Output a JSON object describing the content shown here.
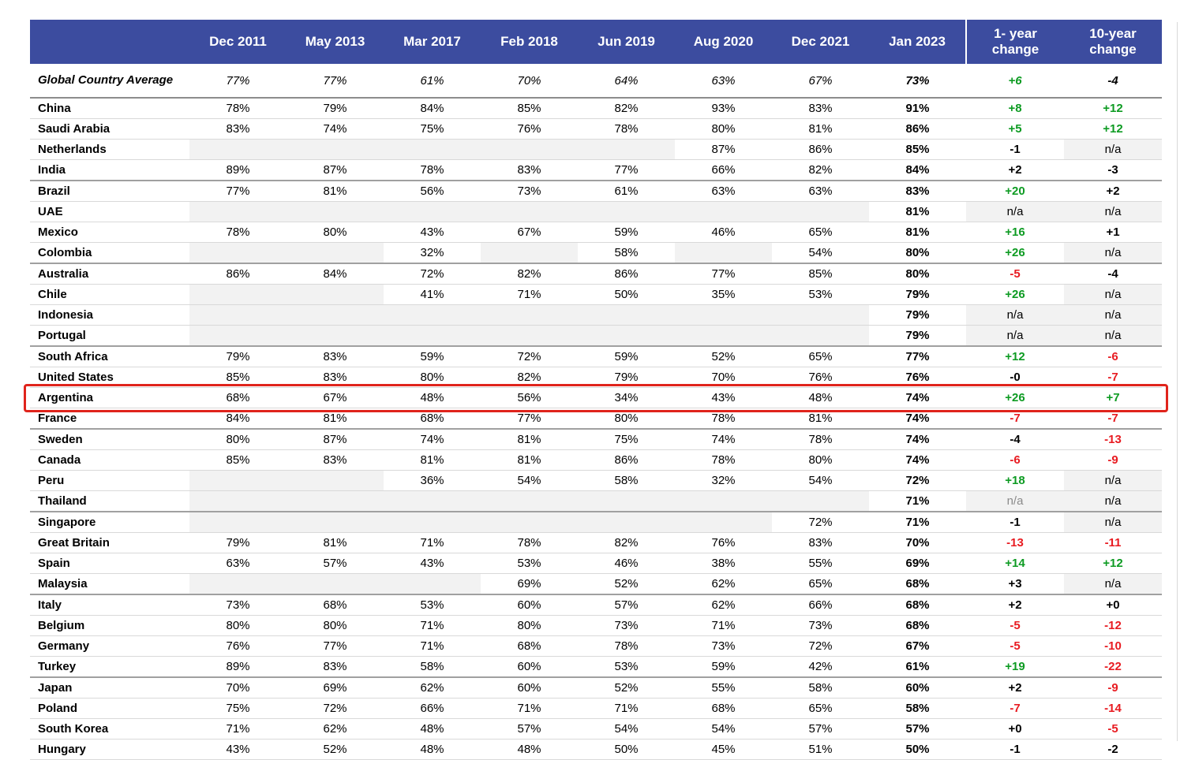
{
  "colors": {
    "header_bg": "#3c4c9f",
    "green": "#0d9b22",
    "red": "#e81b21",
    "cell_gray": "#f2f2f2",
    "highlight_red": "#e0241c"
  },
  "table": {
    "columns": [
      "",
      "Dec 2011",
      "May 2013",
      "Mar 2017",
      "Feb 2018",
      "Jun 2019",
      "Aug 2020",
      "Dec 2021",
      "Jan 2023",
      "1- year change",
      "10-year change"
    ],
    "rows": [
      {
        "name": "Global Country Average",
        "italic": true,
        "values": [
          "77%",
          "77%",
          "61%",
          "70%",
          "64%",
          "63%",
          "67%",
          "73%"
        ],
        "c1": {
          "t": "+6",
          "c": "green"
        },
        "c10": {
          "t": "-4",
          "c": "black"
        }
      },
      {
        "name": "China",
        "values": [
          "78%",
          "79%",
          "84%",
          "85%",
          "82%",
          "93%",
          "83%",
          "91%"
        ],
        "c1": {
          "t": "+8",
          "c": "green"
        },
        "c10": {
          "t": "+12",
          "c": "green"
        }
      },
      {
        "name": "Saudi Arabia",
        "values": [
          "83%",
          "74%",
          "75%",
          "76%",
          "78%",
          "80%",
          "81%",
          "86%"
        ],
        "c1": {
          "t": "+5",
          "c": "green"
        },
        "c10": {
          "t": "+12",
          "c": "green"
        }
      },
      {
        "name": "Netherlands",
        "values": [
          "",
          "",
          "",
          "",
          "",
          "87%",
          "86%",
          "85%"
        ],
        "c1": {
          "t": "-1",
          "c": "black"
        },
        "c10": {
          "t": "n/a",
          "c": "black",
          "bg": true
        }
      },
      {
        "name": "India",
        "group_end": true,
        "values": [
          "89%",
          "87%",
          "78%",
          "83%",
          "77%",
          "66%",
          "82%",
          "84%"
        ],
        "c1": {
          "t": "+2",
          "c": "black"
        },
        "c10": {
          "t": "-3",
          "c": "black"
        }
      },
      {
        "name": "Brazil",
        "values": [
          "77%",
          "81%",
          "56%",
          "73%",
          "61%",
          "63%",
          "63%",
          "83%"
        ],
        "c1": {
          "t": "+20",
          "c": "green"
        },
        "c10": {
          "t": "+2",
          "c": "black"
        }
      },
      {
        "name": "UAE",
        "values": [
          "",
          "",
          "",
          "",
          "",
          "",
          "",
          "81%"
        ],
        "c1": {
          "t": "n/a",
          "c": "black",
          "bg": true
        },
        "c10": {
          "t": "n/a",
          "c": "black",
          "bg": true
        }
      },
      {
        "name": "Mexico",
        "values": [
          "78%",
          "80%",
          "43%",
          "67%",
          "59%",
          "46%",
          "65%",
          "81%"
        ],
        "c1": {
          "t": "+16",
          "c": "green"
        },
        "c10": {
          "t": "+1",
          "c": "black"
        }
      },
      {
        "name": "Colombia",
        "group_end": true,
        "values": [
          "",
          "",
          "32%",
          "",
          "58%",
          "",
          "54%",
          "80%"
        ],
        "c1": {
          "t": "+26",
          "c": "green"
        },
        "c10": {
          "t": "n/a",
          "c": "black",
          "bg": true
        }
      },
      {
        "name": "Australia",
        "values": [
          "86%",
          "84%",
          "72%",
          "82%",
          "86%",
          "77%",
          "85%",
          "80%"
        ],
        "c1": {
          "t": "-5",
          "c": "red"
        },
        "c10": {
          "t": "-4",
          "c": "black"
        }
      },
      {
        "name": "Chile",
        "values": [
          "",
          "",
          "41%",
          "71%",
          "50%",
          "35%",
          "53%",
          "79%"
        ],
        "c1": {
          "t": "+26",
          "c": "green"
        },
        "c10": {
          "t": "n/a",
          "c": "black",
          "bg": true
        }
      },
      {
        "name": "Indonesia",
        "values": [
          "",
          "",
          "",
          "",
          "",
          "",
          "",
          "79%"
        ],
        "c1": {
          "t": "n/a",
          "c": "black",
          "bg": true
        },
        "c10": {
          "t": "n/a",
          "c": "black",
          "bg": true
        }
      },
      {
        "name": "Portugal",
        "group_end": true,
        "values": [
          "",
          "",
          "",
          "",
          "",
          "",
          "",
          "79%"
        ],
        "c1": {
          "t": "n/a",
          "c": "black",
          "bg": true
        },
        "c10": {
          "t": "n/a",
          "c": "black",
          "bg": true
        }
      },
      {
        "name": "South Africa",
        "values": [
          "79%",
          "83%",
          "59%",
          "72%",
          "59%",
          "52%",
          "65%",
          "77%"
        ],
        "c1": {
          "t": "+12",
          "c": "green"
        },
        "c10": {
          "t": "-6",
          "c": "red"
        }
      },
      {
        "name": "United States",
        "values": [
          "85%",
          "83%",
          "80%",
          "82%",
          "79%",
          "70%",
          "76%",
          "76%"
        ],
        "c1": {
          "t": "-0",
          "c": "black"
        },
        "c10": {
          "t": "-7",
          "c": "red"
        }
      },
      {
        "name": "Argentina",
        "highlight": true,
        "values": [
          "68%",
          "67%",
          "48%",
          "56%",
          "34%",
          "43%",
          "48%",
          "74%"
        ],
        "c1": {
          "t": "+26",
          "c": "green"
        },
        "c10": {
          "t": "+7",
          "c": "green"
        }
      },
      {
        "name": "France",
        "group_end": true,
        "values": [
          "84%",
          "81%",
          "68%",
          "77%",
          "80%",
          "78%",
          "81%",
          "74%"
        ],
        "c1": {
          "t": "-7",
          "c": "red"
        },
        "c10": {
          "t": "-7",
          "c": "red"
        }
      },
      {
        "name": "Sweden",
        "values": [
          "80%",
          "87%",
          "74%",
          "81%",
          "75%",
          "74%",
          "78%",
          "74%"
        ],
        "c1": {
          "t": "-4",
          "c": "black"
        },
        "c10": {
          "t": "-13",
          "c": "red"
        }
      },
      {
        "name": "Canada",
        "values": [
          "85%",
          "83%",
          "81%",
          "81%",
          "86%",
          "78%",
          "80%",
          "74%"
        ],
        "c1": {
          "t": "-6",
          "c": "red"
        },
        "c10": {
          "t": "-9",
          "c": "red"
        }
      },
      {
        "name": "Peru",
        "values": [
          "",
          "",
          "36%",
          "54%",
          "58%",
          "32%",
          "54%",
          "72%"
        ],
        "c1": {
          "t": "+18",
          "c": "green"
        },
        "c10": {
          "t": "n/a",
          "c": "black",
          "bg": true
        }
      },
      {
        "name": "Thailand",
        "group_end": true,
        "values": [
          "",
          "",
          "",
          "",
          "",
          "",
          "",
          "71%"
        ],
        "c1": {
          "t": "n/a",
          "c": "gray",
          "bg": true
        },
        "c10": {
          "t": "n/a",
          "c": "black",
          "bg": true
        }
      },
      {
        "name": "Singapore",
        "values": [
          "",
          "",
          "",
          "",
          "",
          "",
          "72%",
          "71%"
        ],
        "c1": {
          "t": "-1",
          "c": "black"
        },
        "c10": {
          "t": "n/a",
          "c": "black",
          "bg": true
        }
      },
      {
        "name": "Great Britain",
        "values": [
          "79%",
          "81%",
          "71%",
          "78%",
          "82%",
          "76%",
          "83%",
          "70%"
        ],
        "c1": {
          "t": "-13",
          "c": "red"
        },
        "c10": {
          "t": "-11",
          "c": "red"
        }
      },
      {
        "name": "Spain",
        "values": [
          "63%",
          "57%",
          "43%",
          "53%",
          "46%",
          "38%",
          "55%",
          "69%"
        ],
        "c1": {
          "t": "+14",
          "c": "green"
        },
        "c10": {
          "t": "+12",
          "c": "green"
        }
      },
      {
        "name": "Malaysia",
        "group_end": true,
        "values": [
          "",
          "",
          "",
          "69%",
          "52%",
          "62%",
          "65%",
          "68%"
        ],
        "c1": {
          "t": "+3",
          "c": "black"
        },
        "c10": {
          "t": "n/a",
          "c": "black",
          "bg": true
        }
      },
      {
        "name": "Italy",
        "values": [
          "73%",
          "68%",
          "53%",
          "60%",
          "57%",
          "62%",
          "66%",
          "68%"
        ],
        "c1": {
          "t": "+2",
          "c": "black"
        },
        "c10": {
          "t": "+0",
          "c": "black"
        }
      },
      {
        "name": "Belgium",
        "values": [
          "80%",
          "80%",
          "71%",
          "80%",
          "73%",
          "71%",
          "73%",
          "68%"
        ],
        "c1": {
          "t": "-5",
          "c": "red"
        },
        "c10": {
          "t": "-12",
          "c": "red"
        }
      },
      {
        "name": "Germany",
        "values": [
          "76%",
          "77%",
          "71%",
          "68%",
          "78%",
          "73%",
          "72%",
          "67%"
        ],
        "c1": {
          "t": "-5",
          "c": "red"
        },
        "c10": {
          "t": "-10",
          "c": "red"
        }
      },
      {
        "name": "Turkey",
        "group_end": true,
        "values": [
          "89%",
          "83%",
          "58%",
          "60%",
          "53%",
          "59%",
          "42%",
          "61%"
        ],
        "c1": {
          "t": "+19",
          "c": "green"
        },
        "c10": {
          "t": "-22",
          "c": "red"
        }
      },
      {
        "name": "Japan",
        "values": [
          "70%",
          "69%",
          "62%",
          "60%",
          "52%",
          "55%",
          "58%",
          "60%"
        ],
        "c1": {
          "t": "+2",
          "c": "black"
        },
        "c10": {
          "t": "-9",
          "c": "red"
        }
      },
      {
        "name": "Poland",
        "values": [
          "75%",
          "72%",
          "66%",
          "71%",
          "71%",
          "68%",
          "65%",
          "58%"
        ],
        "c1": {
          "t": "-7",
          "c": "red"
        },
        "c10": {
          "t": "-14",
          "c": "red"
        }
      },
      {
        "name": "South Korea",
        "values": [
          "71%",
          "62%",
          "48%",
          "57%",
          "54%",
          "54%",
          "57%",
          "57%"
        ],
        "c1": {
          "t": "+0",
          "c": "black"
        },
        "c10": {
          "t": "-5",
          "c": "red"
        }
      },
      {
        "name": "Hungary",
        "values": [
          "43%",
          "52%",
          "48%",
          "48%",
          "50%",
          "45%",
          "51%",
          "50%"
        ],
        "c1": {
          "t": "-1",
          "c": "black"
        },
        "c10": {
          "t": "-2",
          "c": "black"
        }
      }
    ]
  }
}
